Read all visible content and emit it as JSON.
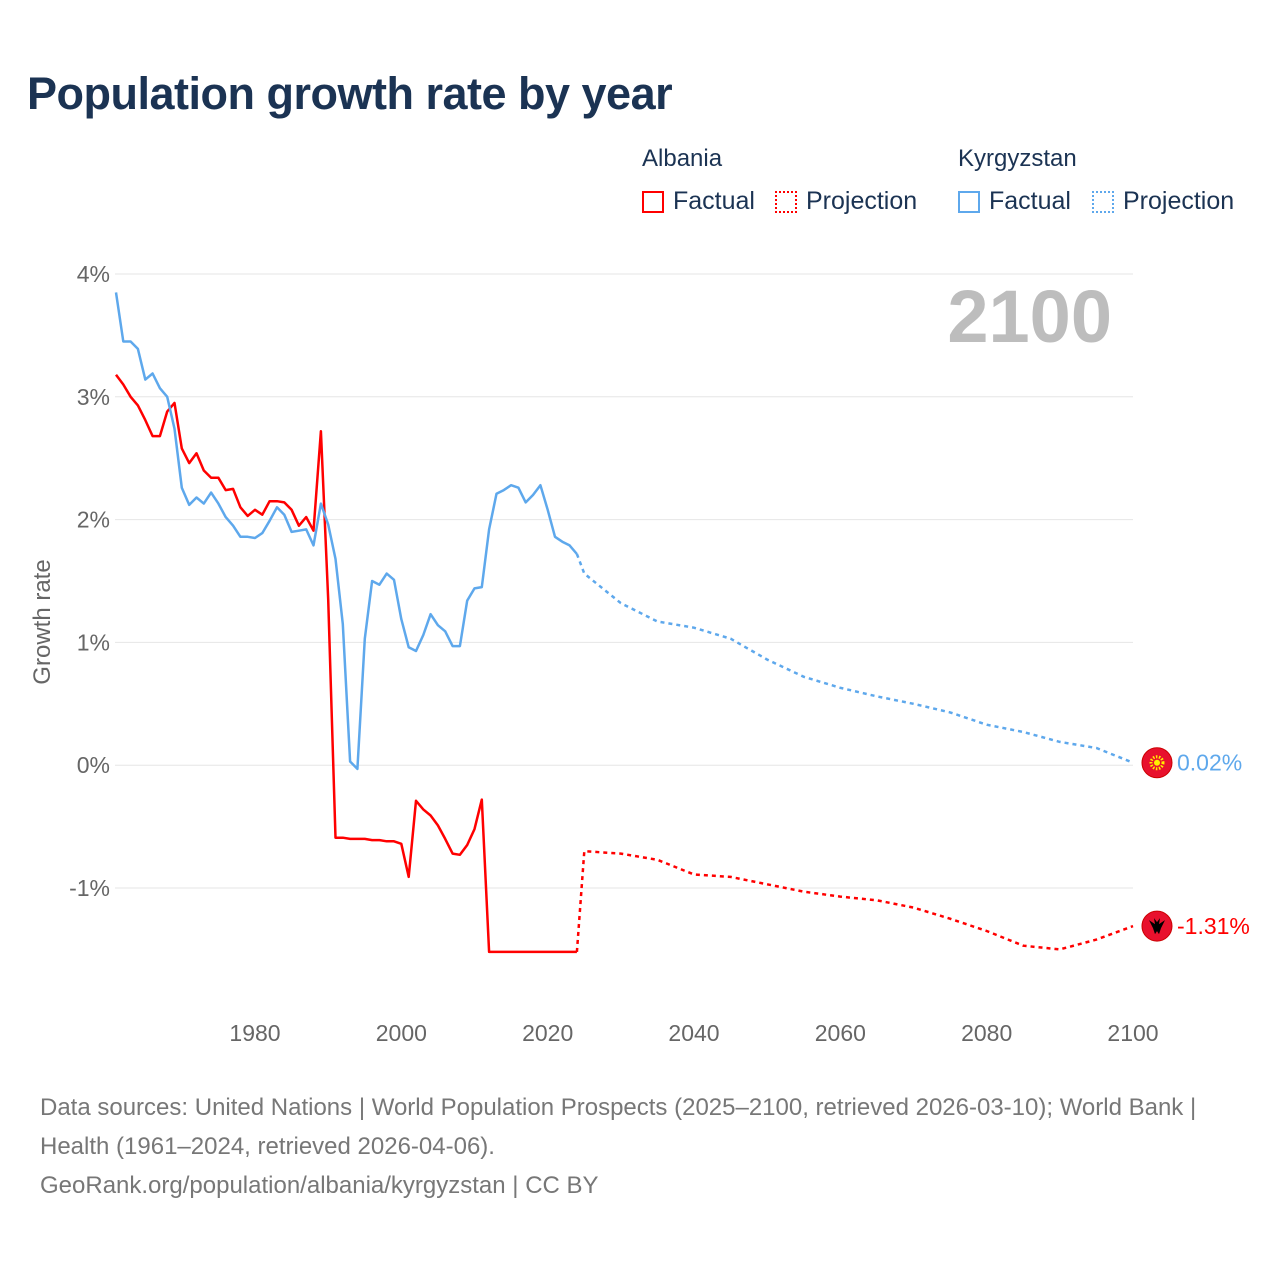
{
  "title": "Population growth rate by year",
  "legend": {
    "groups": [
      {
        "name": "Albania",
        "factual": "Factual",
        "projection": "Projection",
        "color": "#ff0000"
      },
      {
        "name": "Kyrgyzstan",
        "factual": "Factual",
        "projection": "Projection",
        "color": "#5ea8ec"
      }
    ]
  },
  "year_display": "2100",
  "sources": {
    "line1": "Data sources: United Nations | World Population Prospects (2025–2100, retrieved 2026-03-10); World Bank | Health (1961–2024, retrieved 2026-04-06).",
    "line2": "GeoRank.org/population/albania/kyrgyzstan | CC BY"
  },
  "chart_data": {
    "type": "line",
    "title": "Population growth rate by year",
    "ylabel": "Growth rate",
    "xlabel": "",
    "xlim": [
      1961,
      2100
    ],
    "ylim": [
      -2,
      4
    ],
    "x_ticks": [
      1980,
      2000,
      2020,
      2040,
      2060,
      2080,
      2100
    ],
    "y_ticks": [
      4,
      3,
      2,
      1,
      0,
      -1
    ],
    "y_tick_labels": [
      "4%",
      "3%",
      "2%",
      "1%",
      "0%",
      "-1%"
    ],
    "grid": true,
    "legend_position": "top-right",
    "end_labels": {
      "Kyrgyzstan": "0.02%",
      "Albania": "-1.31%"
    },
    "series": [
      {
        "name": "Albania",
        "color": "#ff0000",
        "flag": "albania-flag",
        "factual": {
          "start_year": 1961,
          "values": [
            3.18,
            3.1,
            3.0,
            2.93,
            2.81,
            2.68,
            2.68,
            2.88,
            2.95,
            2.58,
            2.46,
            2.54,
            2.4,
            2.34,
            2.34,
            2.24,
            2.25,
            2.1,
            2.03,
            2.08,
            2.04,
            2.15,
            2.15,
            2.14,
            2.08,
            1.95,
            2.02,
            1.91,
            2.72,
            1.35,
            -0.59,
            -0.59,
            -0.6,
            -0.6,
            -0.6,
            -0.61,
            -0.61,
            -0.62,
            -0.62,
            -0.64,
            -0.91,
            -0.29,
            -0.36,
            -0.41,
            -0.49,
            -0.6,
            -0.72,
            -0.73,
            -0.65,
            -0.52,
            -0.28,
            -1.52,
            -1.52,
            -1.52,
            -1.52,
            -1.52,
            -1.52,
            -1.52,
            -1.52,
            -1.52,
            -1.52,
            -1.52,
            -1.52,
            -1.52
          ]
        },
        "projection": {
          "years": [
            2024,
            2025,
            2030,
            2035,
            2040,
            2045,
            2050,
            2055,
            2060,
            2065,
            2070,
            2075,
            2080,
            2085,
            2090,
            2095,
            2100
          ],
          "values": [
            -1.52,
            -0.7,
            -0.72,
            -0.77,
            -0.89,
            -0.91,
            -0.97,
            -1.03,
            -1.07,
            -1.1,
            -1.16,
            -1.25,
            -1.35,
            -1.47,
            -1.5,
            -1.42,
            -1.31
          ]
        }
      },
      {
        "name": "Kyrgyzstan",
        "color": "#5ea8ec",
        "flag": "kyrgyzstan-flag",
        "factual": {
          "start_year": 1961,
          "values": [
            3.85,
            3.45,
            3.45,
            3.39,
            3.14,
            3.19,
            3.07,
            3.0,
            2.74,
            2.26,
            2.12,
            2.18,
            2.13,
            2.22,
            2.13,
            2.02,
            1.95,
            1.86,
            1.86,
            1.85,
            1.89,
            1.99,
            2.1,
            2.04,
            1.9,
            1.91,
            1.92,
            1.79,
            2.13,
            1.96,
            1.68,
            1.15,
            0.03,
            -0.03,
            1.03,
            1.5,
            1.47,
            1.56,
            1.51,
            1.19,
            0.96,
            0.93,
            1.06,
            1.23,
            1.14,
            1.09,
            0.97,
            0.97,
            1.34,
            1.44,
            1.45,
            1.92,
            2.21,
            2.24,
            2.28,
            2.26,
            2.14,
            2.2,
            2.28,
            2.08,
            1.86,
            1.82,
            1.79,
            1.72
          ]
        },
        "projection": {
          "years": [
            2024,
            2025,
            2030,
            2035,
            2040,
            2045,
            2050,
            2055,
            2060,
            2065,
            2070,
            2075,
            2080,
            2085,
            2090,
            2095,
            2100
          ],
          "values": [
            1.72,
            1.56,
            1.32,
            1.17,
            1.12,
            1.03,
            0.86,
            0.72,
            0.63,
            0.56,
            0.5,
            0.43,
            0.33,
            0.27,
            0.19,
            0.14,
            0.02
          ]
        }
      }
    ]
  }
}
